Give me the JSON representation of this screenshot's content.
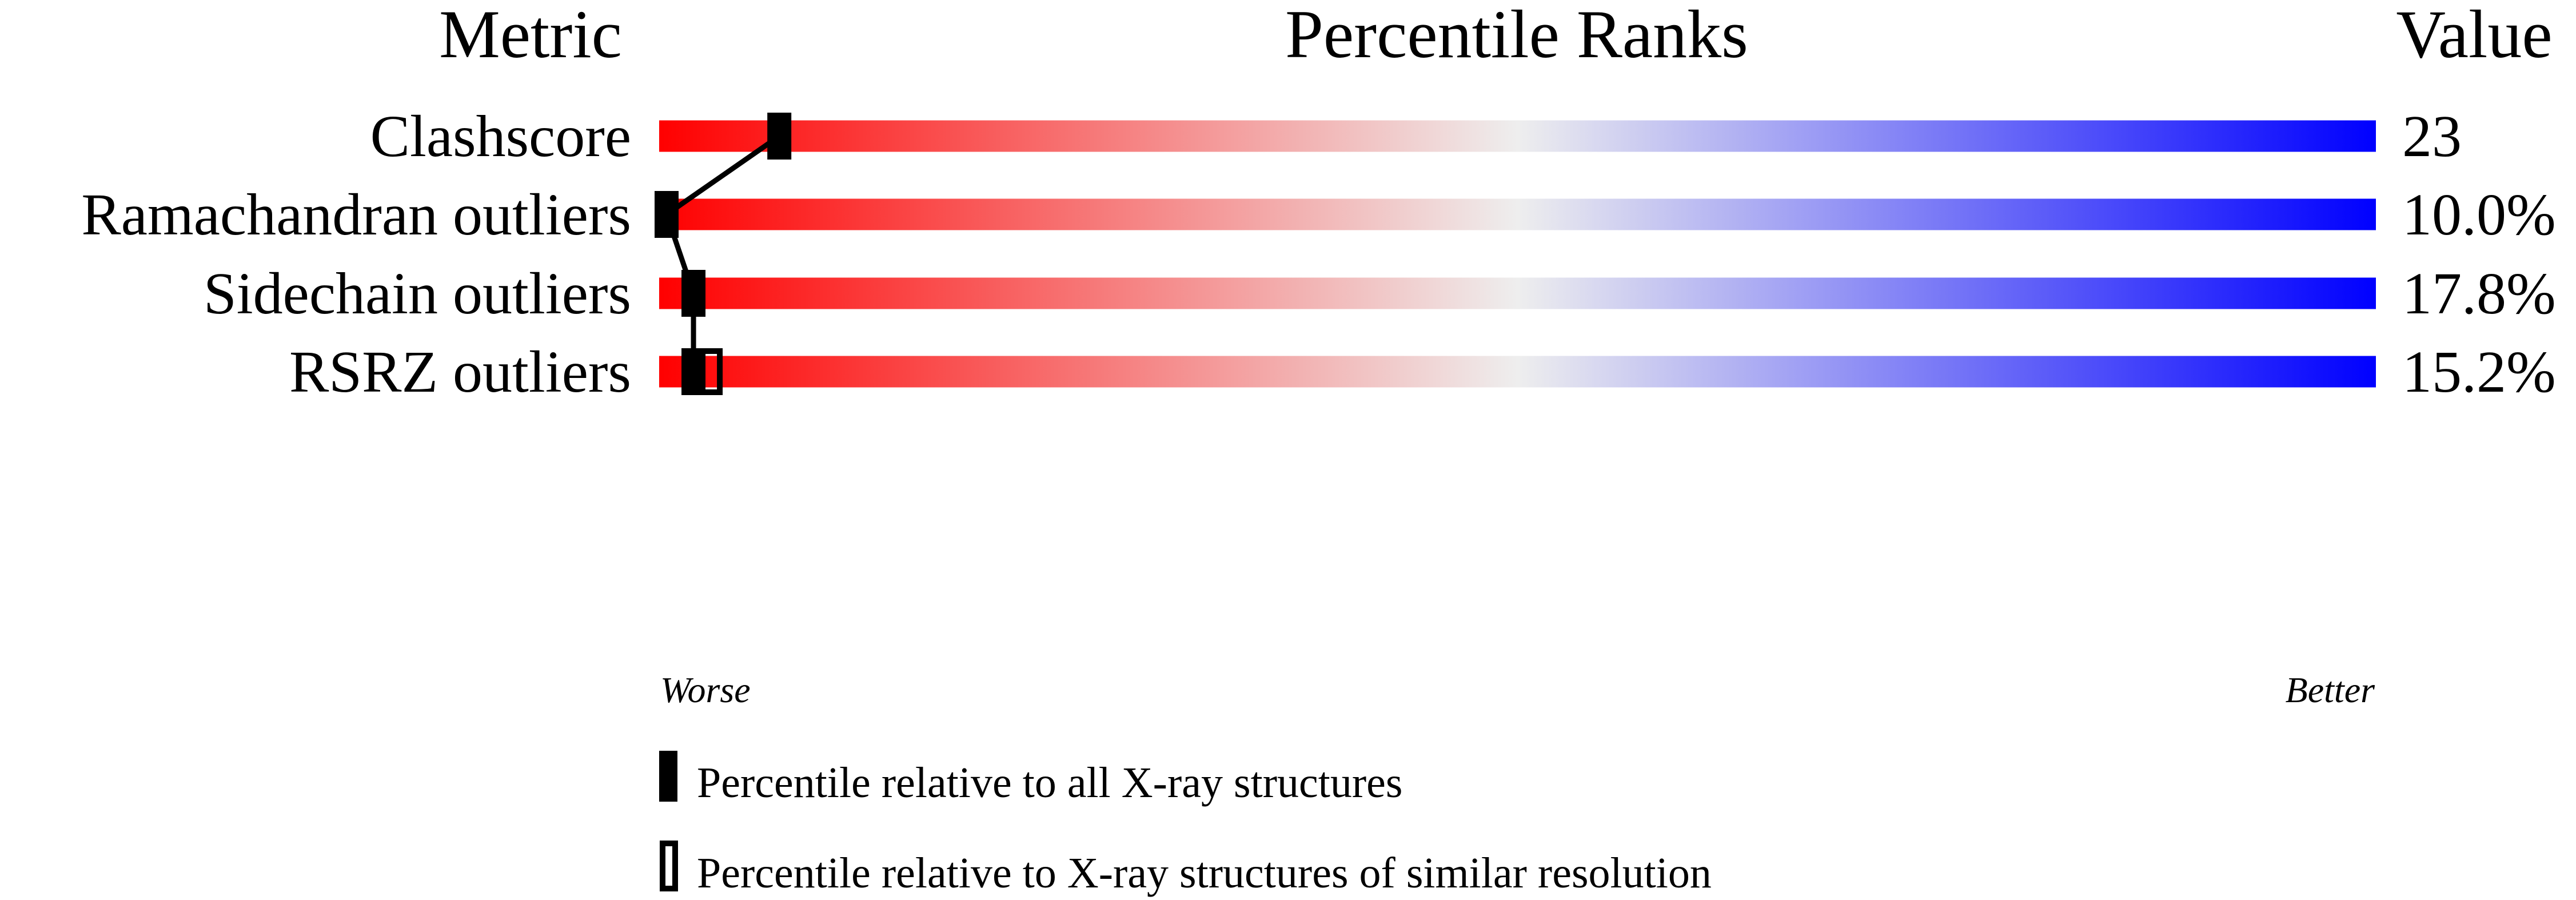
{
  "chart_data": {
    "type": "bar",
    "headers": {
      "metric": "Metric",
      "ranks": "Percentile Ranks",
      "value": "Value"
    },
    "xlim": [
      0,
      100
    ],
    "axis_labels": {
      "left": "Worse",
      "right": "Better"
    },
    "colors": {
      "worse": "#ff0000",
      "middle": "#eeeeee",
      "better": "#0000ff",
      "marker": "#000000"
    },
    "rows": [
      {
        "metric": "Clashscore",
        "value": "23",
        "percentile_all": 7,
        "percentile_similar": null
      },
      {
        "metric": "Ramachandran outliers",
        "value": "10.0%",
        "percentile_all": 0,
        "percentile_similar": null
      },
      {
        "metric": "Sidechain outliers",
        "value": "17.8%",
        "percentile_all": 2,
        "percentile_similar": null
      },
      {
        "metric": "RSRZ outliers",
        "value": "15.2%",
        "percentile_all": 2,
        "percentile_similar": 3
      }
    ],
    "legend": [
      {
        "marker": "filled",
        "label": "Percentile relative to all X-ray structures"
      },
      {
        "marker": "open",
        "label": "Percentile relative to X-ray structures of similar resolution"
      }
    ]
  }
}
